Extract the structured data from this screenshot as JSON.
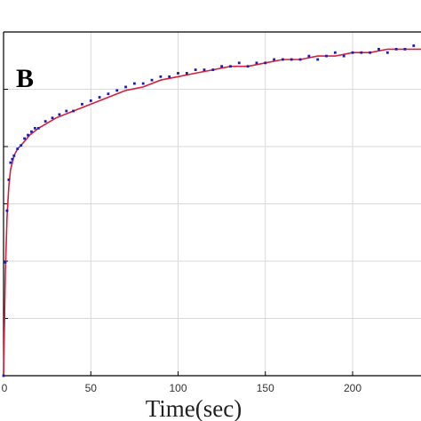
{
  "chart_data": {
    "type": "scatter",
    "panel_label": "B",
    "xlabel": "Time(sec)",
    "ylabel": "",
    "xlim": [
      0,
      240
    ],
    "x_ticks": [
      "0",
      "50",
      "100",
      "150",
      "200"
    ],
    "y_gridlines": 7,
    "grid": true,
    "colors": {
      "points": "#1c1cb4",
      "fit": "#d81e3c",
      "grid": "#d9d9d9",
      "axes": "#000000"
    },
    "series": [
      {
        "style": "markers",
        "x": [
          0,
          1,
          2,
          3,
          4,
          5,
          6,
          8,
          10,
          12,
          14,
          16,
          18,
          20,
          24,
          28,
          32,
          36,
          40,
          45,
          50,
          55,
          60,
          65,
          70,
          75,
          80,
          85,
          90,
          95,
          100,
          105,
          110,
          115,
          120,
          125,
          130,
          135,
          140,
          145,
          150,
          155,
          160,
          165,
          170,
          175,
          180,
          185,
          190,
          195,
          200,
          205,
          210,
          215,
          220,
          225,
          230,
          235,
          240
        ],
        "y": [
          0,
          0.33,
          0.48,
          0.57,
          0.62,
          0.63,
          0.64,
          0.66,
          0.67,
          0.69,
          0.7,
          0.71,
          0.72,
          0.72,
          0.74,
          0.75,
          0.76,
          0.77,
          0.77,
          0.79,
          0.8,
          0.81,
          0.82,
          0.83,
          0.84,
          0.85,
          0.85,
          0.86,
          0.87,
          0.87,
          0.88,
          0.88,
          0.89,
          0.89,
          0.89,
          0.9,
          0.9,
          0.91,
          0.9,
          0.91,
          0.91,
          0.92,
          0.92,
          0.92,
          0.92,
          0.93,
          0.92,
          0.93,
          0.94,
          0.93,
          0.94,
          0.94,
          0.94,
          0.95,
          0.94,
          0.95,
          0.95,
          0.96,
          0.96
        ]
      },
      {
        "style": "fit-line",
        "x": [
          0,
          1,
          2,
          3,
          4,
          6,
          8,
          10,
          15,
          20,
          30,
          40,
          50,
          60,
          70,
          80,
          90,
          100,
          110,
          120,
          130,
          140,
          150,
          160,
          170,
          180,
          190,
          200,
          210,
          220,
          230,
          240
        ],
        "y": [
          0,
          0.3,
          0.46,
          0.55,
          0.6,
          0.64,
          0.66,
          0.67,
          0.7,
          0.72,
          0.75,
          0.77,
          0.79,
          0.81,
          0.83,
          0.84,
          0.86,
          0.87,
          0.88,
          0.89,
          0.9,
          0.9,
          0.91,
          0.92,
          0.92,
          0.93,
          0.93,
          0.94,
          0.94,
          0.95,
          0.95,
          0.95
        ]
      }
    ]
  }
}
